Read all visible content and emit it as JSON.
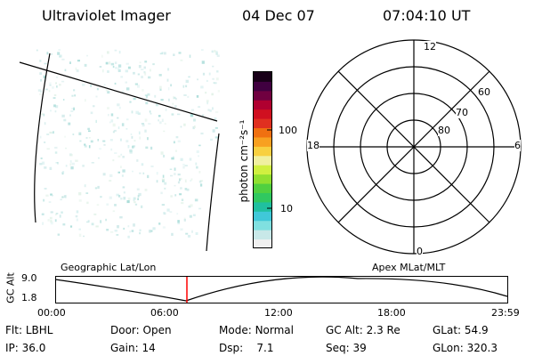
{
  "header": {
    "title": "Ultraviolet Imager",
    "date": "04 Dec 07",
    "time": "07:04:10 UT"
  },
  "image_panel": {
    "label": "Geographic Lat/Lon"
  },
  "colorbar": {
    "unit_label": "photon cm⁻²s⁻¹",
    "ticks": [
      "100",
      "10"
    ],
    "colors": [
      "#f0f0f0",
      "#c8e8e8",
      "#80e0e0",
      "#40c8d8",
      "#20c0a0",
      "#30c860",
      "#50d040",
      "#90e030",
      "#d0f040",
      "#f0f0a0",
      "#f8d040",
      "#f8a020",
      "#f07010",
      "#e03020",
      "#d01020",
      "#b00030",
      "#700040",
      "#400040",
      "#180018"
    ]
  },
  "polar_plot": {
    "label": "Apex MLat/MLT",
    "mlt_labels": [
      "12",
      "18",
      "6",
      "0"
    ],
    "mlat_labels": [
      "60",
      "70",
      "80"
    ]
  },
  "altitude_plot": {
    "ylabel": "GC Alt",
    "yticks": [
      "9.0",
      "1.8"
    ],
    "xticks": [
      "00:00",
      "06:00",
      "12:00",
      "18:00",
      "23:59"
    ],
    "marker_color": "#ff0000"
  },
  "footer": {
    "row1": [
      {
        "key": "Flt:",
        "value": "LBHL"
      },
      {
        "key": "Door:",
        "value": "Open"
      },
      {
        "key": "Mode:",
        "value": "Normal"
      },
      {
        "key": "GC Alt:",
        "value": "2.3 Re"
      },
      {
        "key": "GLat:",
        "value": "54.9"
      }
    ],
    "row2": [
      {
        "key": "IP:",
        "value": "36.0"
      },
      {
        "key": "Gain:",
        "value": "14"
      },
      {
        "key": "Dsp:",
        "value": "7.1"
      },
      {
        "key": "Seq:",
        "value": "39"
      },
      {
        "key": "GLon:",
        "value": "320.3"
      }
    ]
  }
}
